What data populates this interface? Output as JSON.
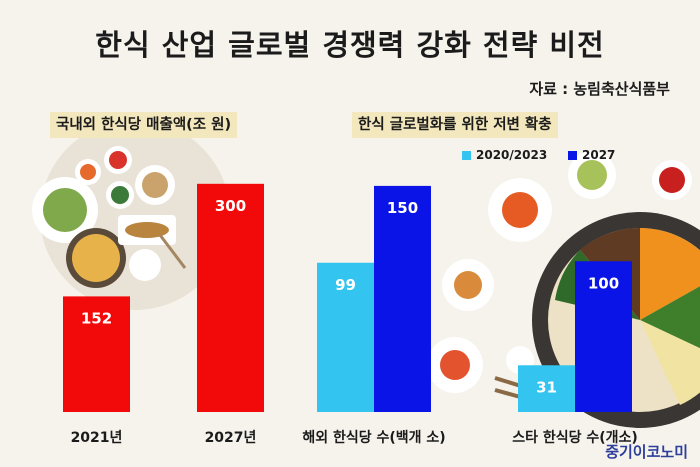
{
  "title": "한식 산업 글로벌 경쟁력 강화 전략 비전",
  "source": "자료 : 농림축산식품부",
  "watermark": "중기이코노미",
  "colors": {
    "red": "#f20a0a",
    "light_blue": "#33c4ef",
    "dark_blue": "#0b14e6"
  },
  "chart_data": [
    {
      "type": "bar",
      "title": "국내외 한식당 매출액(조 원)",
      "categories": [
        "2021년",
        "2027년"
      ],
      "values": [
        152,
        300
      ],
      "ylim": [
        0,
        330
      ],
      "color": "#f20a0a",
      "legend": "none",
      "grid": false
    },
    {
      "type": "bar",
      "title": "한식 글로벌화를 위한 저변 확충",
      "categories": [
        "해외 한식당 수(백개 소)",
        "스타 한식당 수(개소)"
      ],
      "series": [
        {
          "name": "2020/2023",
          "values": [
            99,
            31
          ],
          "color": "#33c4ef"
        },
        {
          "name": "2027",
          "values": [
            150,
            100
          ],
          "color": "#0b14e6"
        }
      ],
      "ylim": [
        0,
        203
      ],
      "legend": "top",
      "grid": false
    }
  ]
}
